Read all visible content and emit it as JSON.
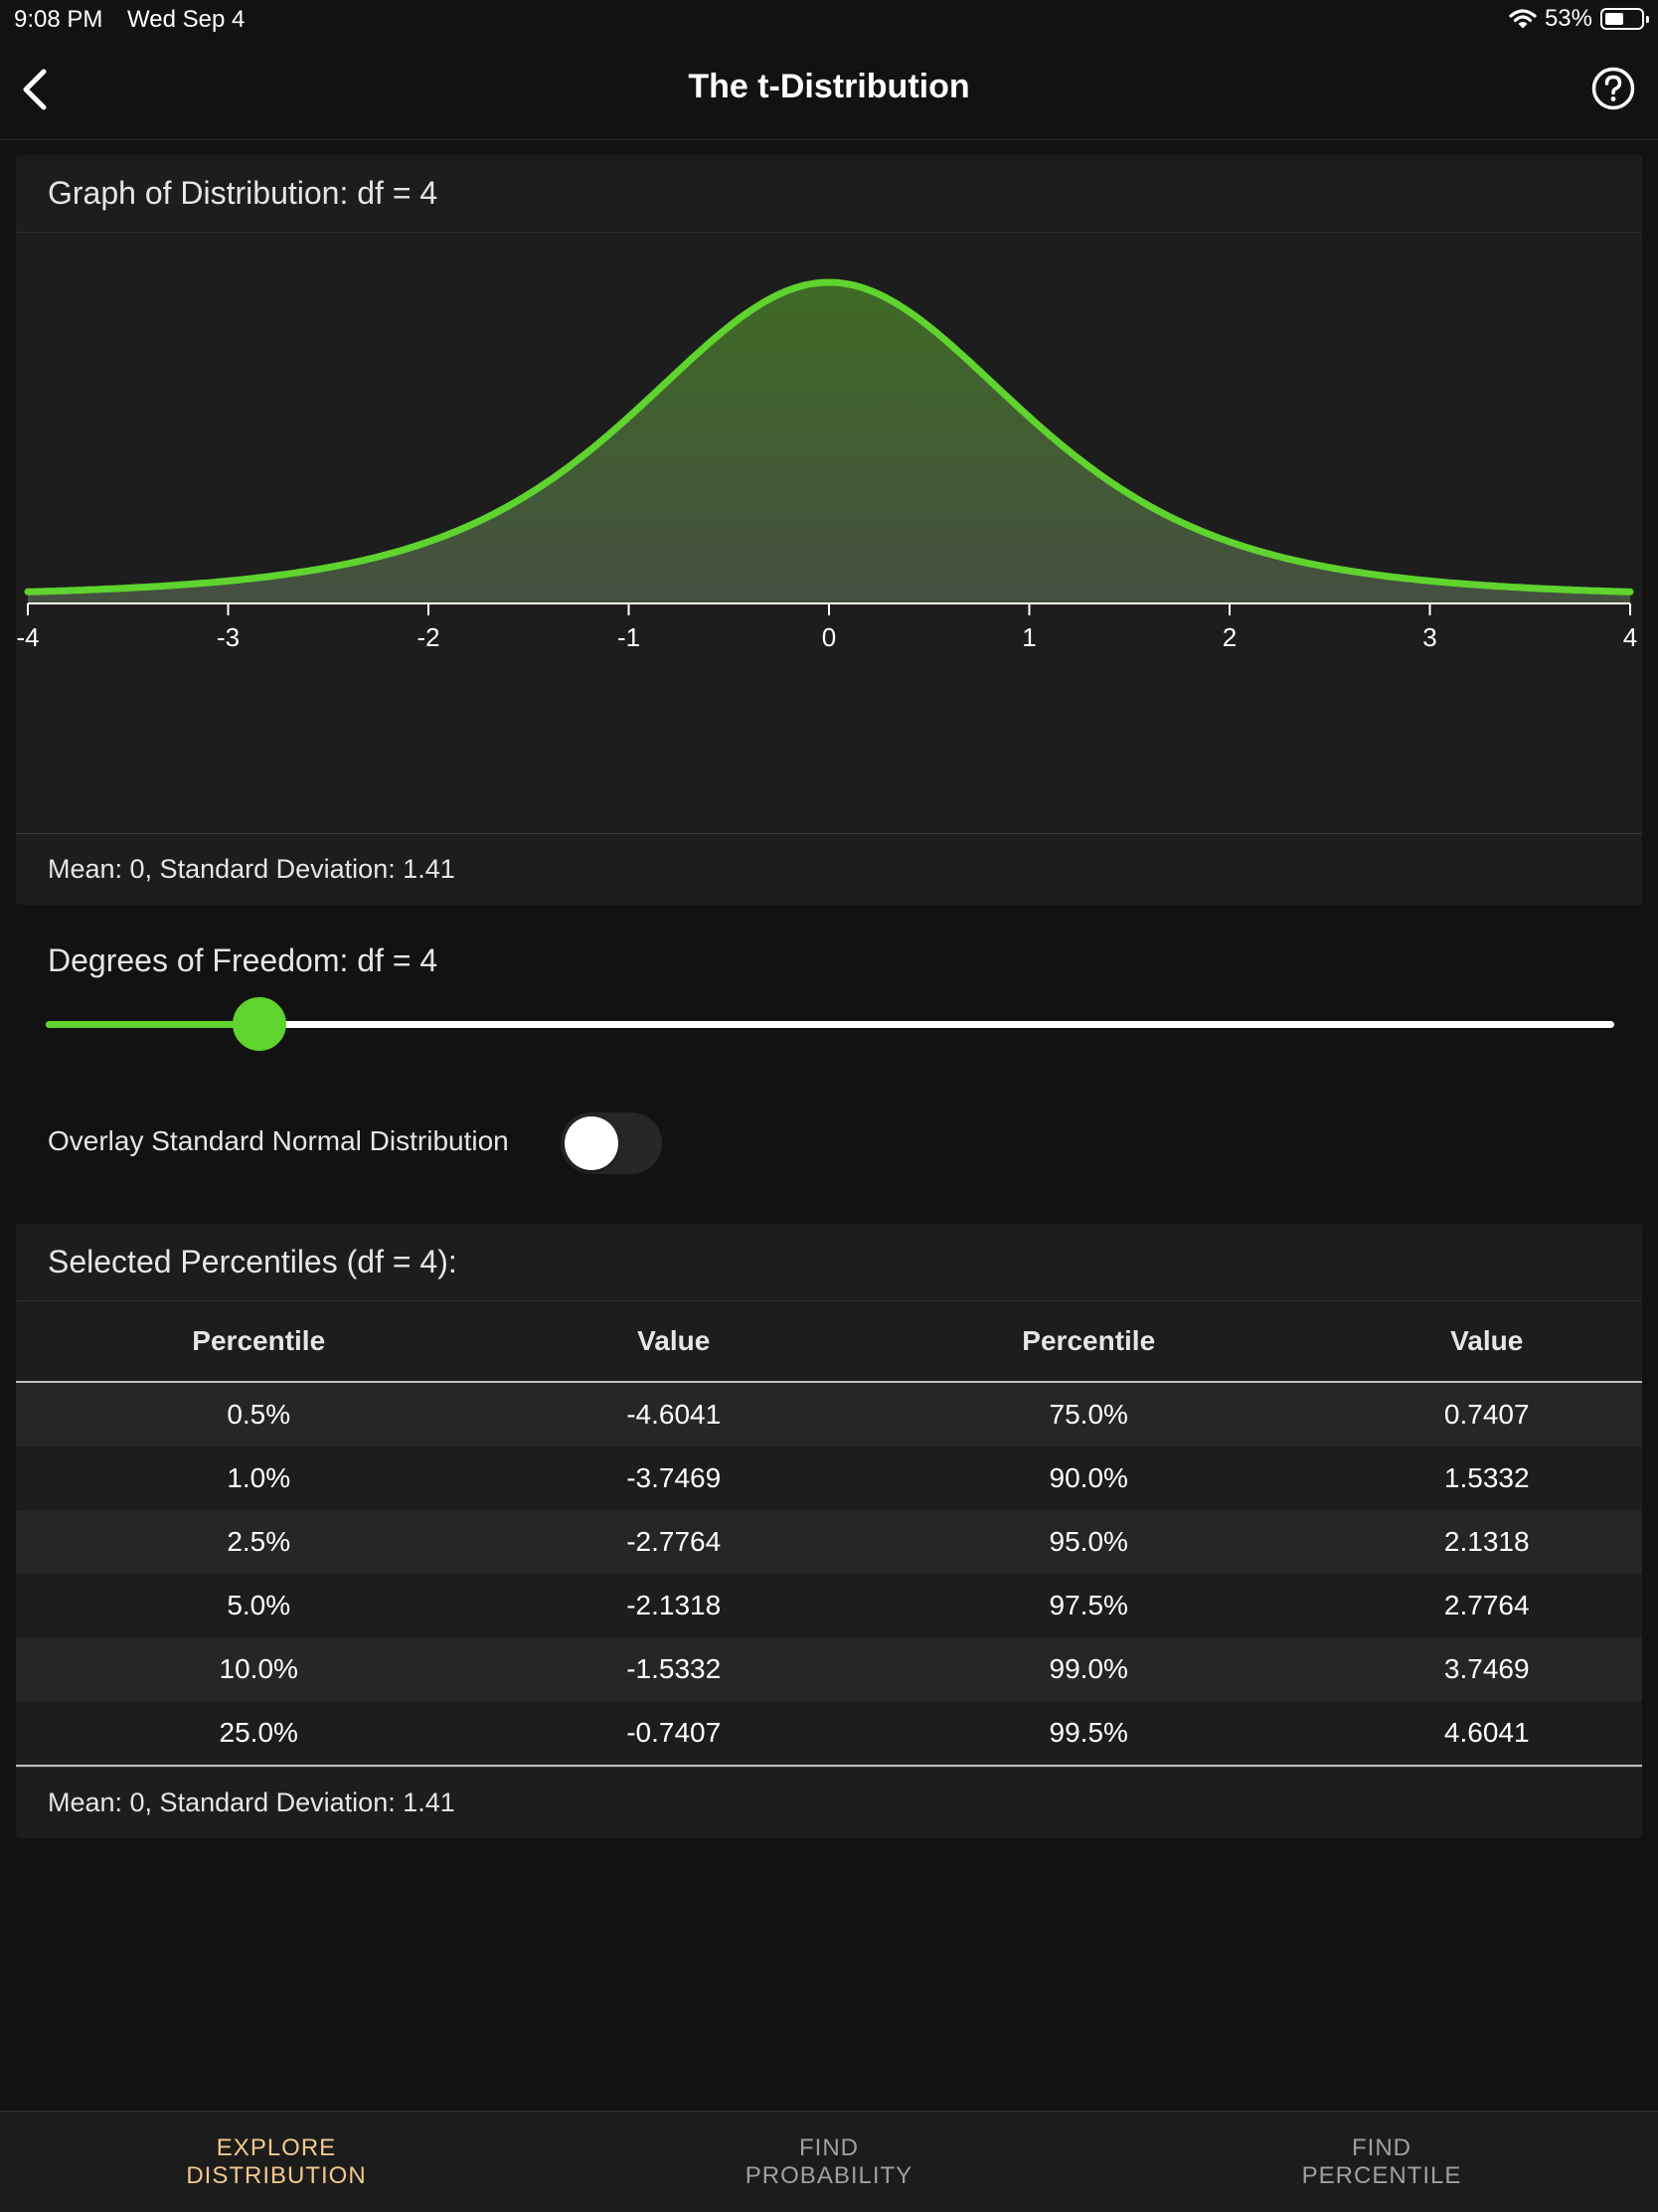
{
  "status": {
    "time": "9:08 PM",
    "date": "Wed Sep 4",
    "battery": "53%",
    "battery_level": 0.53
  },
  "nav": {
    "title": "The t-Distribution",
    "back_icon": "chevron-left-icon",
    "help_icon": "question-circle-icon"
  },
  "graph": {
    "header": "Graph of Distribution: df = 4",
    "footer": "Mean: 0, Standard Deviation: 1.41"
  },
  "chart_data": {
    "type": "area",
    "title": "",
    "xlabel": "",
    "ylabel": "",
    "df": 4,
    "xlim": [
      -4,
      4
    ],
    "x_ticks": [
      -4,
      -3,
      -2,
      -1,
      0,
      1,
      2,
      3,
      4
    ],
    "tick_labels": [
      "-4",
      "-3",
      "-2",
      "-1",
      "0",
      "1",
      "2",
      "3",
      "4"
    ],
    "y_axis_shown": false,
    "grid": false,
    "line_color": "#5fd32e",
    "fill_color": "#3f6a2a"
  },
  "df_control": {
    "label": "Degrees of Freedom: df = 4",
    "value": 4,
    "fraction": 0.136
  },
  "overlay": {
    "label": "Overlay Standard Normal Distribution",
    "on": false
  },
  "percentiles": {
    "header": "Selected Percentiles (df = 4):",
    "columns": [
      "Percentile",
      "Value",
      "Percentile",
      "Value"
    ],
    "rows": [
      [
        "0.5%",
        "-4.6041",
        "75.0%",
        "0.7407"
      ],
      [
        "1.0%",
        "-3.7469",
        "90.0%",
        "1.5332"
      ],
      [
        "2.5%",
        "-2.7764",
        "95.0%",
        "2.1318"
      ],
      [
        "5.0%",
        "-2.1318",
        "97.5%",
        "2.7764"
      ],
      [
        "10.0%",
        "-1.5332",
        "99.0%",
        "3.7469"
      ],
      [
        "25.0%",
        "-0.7407",
        "99.5%",
        "4.6041"
      ]
    ],
    "footer": "Mean: 0, Standard Deviation: 1.41"
  },
  "tabs": [
    {
      "line1": "EXPLORE",
      "line2": "DISTRIBUTION",
      "active": true
    },
    {
      "line1": "FIND",
      "line2": "PROBABILITY",
      "active": false
    },
    {
      "line1": "FIND",
      "line2": "PERCENTILE",
      "active": false
    }
  ],
  "colors": {
    "accent": "#5fd32e",
    "active_tab": "#f3c98b",
    "background": "#121212",
    "card": "#1d1d1d"
  }
}
